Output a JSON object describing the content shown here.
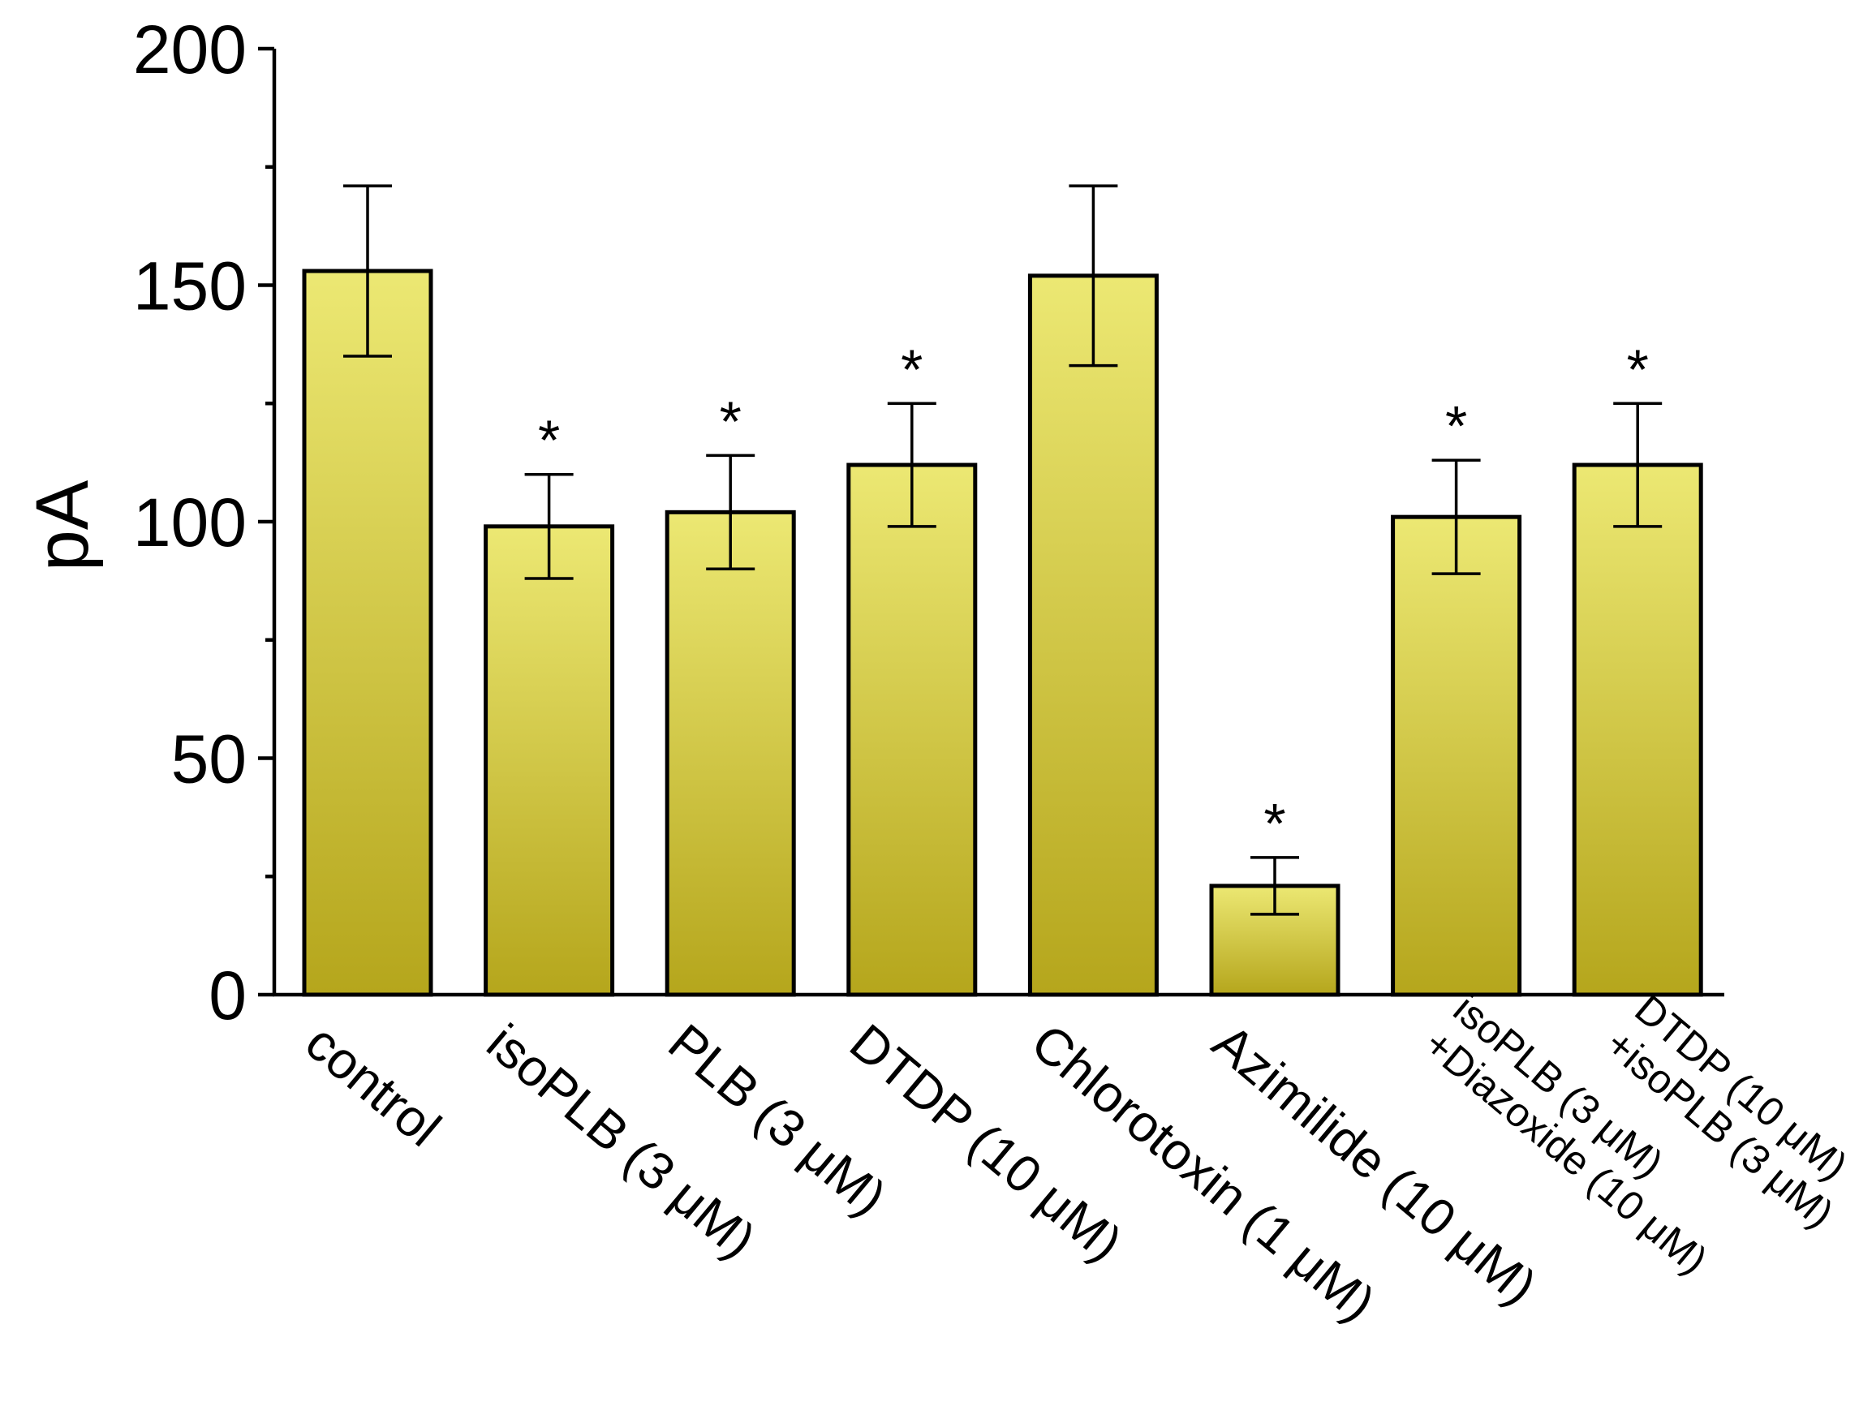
{
  "chart_data": {
    "type": "bar",
    "title": "",
    "xlabel": "",
    "ylabel": "pA",
    "ylim": [
      0,
      200
    ],
    "yticks": [
      0,
      50,
      100,
      150,
      200
    ],
    "grid": false,
    "bar_fill_top": "#ece873",
    "bar_fill_bottom": "#b5a61c",
    "categories": [
      [
        "control"
      ],
      [
        "isoPLB (3 μM)"
      ],
      [
        "PLB (3 μM)"
      ],
      [
        "DTDP (10 μM)"
      ],
      [
        "Chlorotoxin (1 μM)"
      ],
      [
        "Azimilide (10 μM)"
      ],
      [
        "isoPLB (3 μM)",
        "+Diazoxide (10 μM)"
      ],
      [
        "DTDP (10 μM)",
        "+isoPLB (3 μM)"
      ]
    ],
    "values": [
      153,
      99,
      102,
      112,
      152,
      23,
      101,
      112
    ],
    "errors": [
      18,
      11,
      12,
      13,
      19,
      6,
      12,
      13
    ],
    "significance": [
      "",
      "*",
      "*",
      "*",
      "",
      "*",
      "*",
      "*"
    ]
  }
}
